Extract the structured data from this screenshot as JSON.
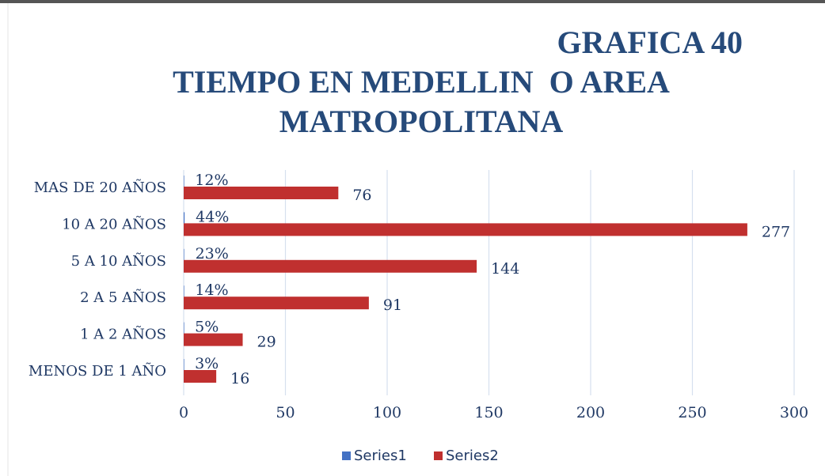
{
  "chart_data": {
    "type": "bar",
    "orientation": "horizontal",
    "title": [
      "GRAFICA 40",
      "TIEMPO EN MEDELLIN  O AREA",
      "MATROPOLITANA"
    ],
    "categories": [
      "MAS DE 20 AÑOS",
      "10 A 20 AÑOS",
      "5 A 10 AÑOS",
      "2 A 5 AÑOS",
      "1 A 2 AÑOS",
      "MENOS DE 1 AÑO"
    ],
    "series": [
      {
        "name": "Series1",
        "color": "#4472c4",
        "values": [
          0.12,
          0.44,
          0.23,
          0.14,
          0.05,
          0.03
        ],
        "value_labels": [
          "12%",
          "44%",
          "23%",
          "14%",
          "5%",
          "3%"
        ]
      },
      {
        "name": "Series2",
        "color": "#c0302f",
        "values": [
          76,
          277,
          144,
          91,
          29,
          16
        ]
      }
    ],
    "xlim": [
      0,
      300
    ],
    "xticks": [
      0,
      50,
      100,
      150,
      200,
      250,
      300
    ],
    "grid": true,
    "legend": "bottom"
  }
}
